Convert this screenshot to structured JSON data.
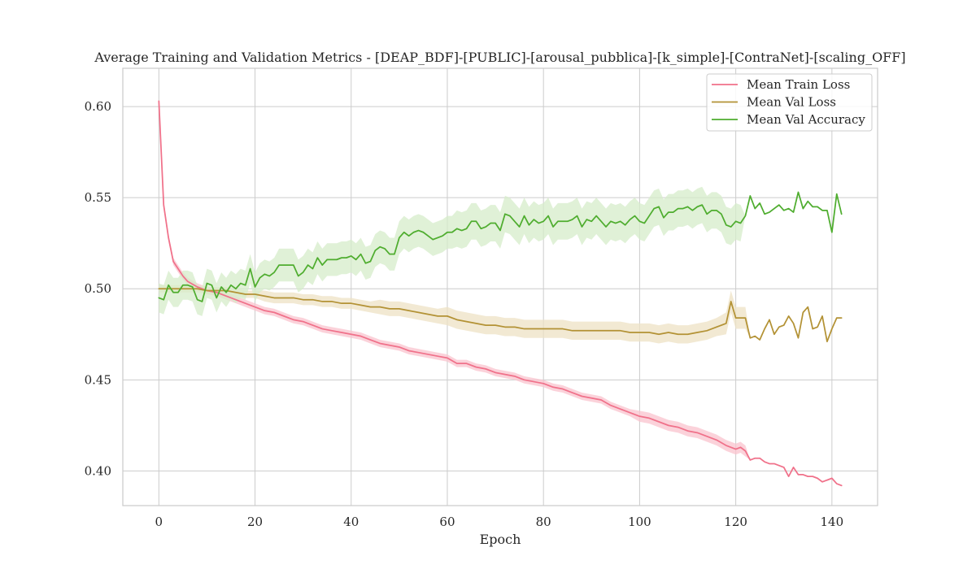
{
  "chart_data": {
    "type": "line",
    "title": "Average Training and Validation Metrics - [DEAP_BDF]-[PUBLIC]-[arousal_pubblica]-[k_simple]-[ContraNet]-[scaling_OFF]",
    "xlabel": "Epoch",
    "ylabel": "",
    "xlim": [
      -7.5,
      149.5
    ],
    "ylim": [
      0.381,
      0.621
    ],
    "xticks": [
      "0",
      "20",
      "40",
      "60",
      "80",
      "100",
      "120",
      "140"
    ],
    "yticks": [
      "0.40",
      "0.45",
      "0.50",
      "0.55",
      "0.60"
    ],
    "grid": true,
    "legend_position": "top-right",
    "series": [
      {
        "name": "Mean Train Loss",
        "color": "#f0718a",
        "band_color": "#f9c3ce",
        "x": [
          0,
          1,
          2,
          3,
          4,
          5,
          6,
          8,
          10,
          12,
          14,
          16,
          18,
          20,
          22,
          24,
          26,
          28,
          30,
          32,
          34,
          36,
          38,
          40,
          42,
          44,
          46,
          48,
          50,
          52,
          54,
          56,
          58,
          60,
          62,
          64,
          66,
          68,
          70,
          72,
          74,
          76,
          78,
          80,
          82,
          84,
          86,
          88,
          90,
          92,
          94,
          96,
          98,
          100,
          102,
          104,
          106,
          108,
          110,
          112,
          114,
          116,
          118,
          120,
          121,
          122,
          123,
          124,
          125,
          126,
          127,
          128,
          129,
          130,
          131,
          132,
          133,
          134,
          135,
          136,
          137,
          138,
          139,
          140,
          141,
          142
        ],
        "values": [
          0.603,
          0.546,
          0.528,
          0.515,
          0.511,
          0.507,
          0.504,
          0.501,
          0.499,
          0.498,
          0.496,
          0.494,
          0.492,
          0.49,
          0.488,
          0.487,
          0.485,
          0.483,
          0.482,
          0.48,
          0.478,
          0.477,
          0.476,
          0.475,
          0.474,
          0.472,
          0.47,
          0.469,
          0.468,
          0.466,
          0.465,
          0.464,
          0.463,
          0.462,
          0.459,
          0.459,
          0.457,
          0.456,
          0.454,
          0.453,
          0.452,
          0.45,
          0.449,
          0.448,
          0.446,
          0.445,
          0.443,
          0.441,
          0.44,
          0.439,
          0.436,
          0.434,
          0.432,
          0.43,
          0.429,
          0.427,
          0.425,
          0.424,
          0.422,
          0.421,
          0.419,
          0.417,
          0.414,
          0.412,
          0.413,
          0.411,
          0.406,
          0.407,
          0.407,
          0.405,
          0.404,
          0.404,
          0.403,
          0.402,
          0.397,
          0.402,
          0.398,
          0.398,
          0.397,
          0.397,
          0.396,
          0.394,
          0.395,
          0.396,
          0.393,
          0.392
        ],
        "band": [
          0.002,
          0.002,
          0.002,
          0.002,
          0.002,
          0.002,
          0.002,
          0.002,
          0.002,
          0.002,
          0.002,
          0.002,
          0.002,
          0.002,
          0.002,
          0.002,
          0.002,
          0.002,
          0.002,
          0.002,
          0.002,
          0.002,
          0.002,
          0.002,
          0.002,
          0.002,
          0.002,
          0.002,
          0.002,
          0.002,
          0.002,
          0.002,
          0.002,
          0.002,
          0.002,
          0.002,
          0.002,
          0.002,
          0.002,
          0.002,
          0.002,
          0.002,
          0.002,
          0.002,
          0.002,
          0.002,
          0.002,
          0.002,
          0.002,
          0.002,
          0.002,
          0.002,
          0.002,
          0.003,
          0.003,
          0.003,
          0.003,
          0.003,
          0.003,
          0.003,
          0.003,
          0.003,
          0.003,
          0.003,
          0.003,
          0.003,
          0,
          0,
          0,
          0,
          0,
          0,
          0,
          0,
          0,
          0,
          0,
          0,
          0,
          0,
          0,
          0,
          0,
          0,
          0,
          0
        ]
      },
      {
        "name": "Mean Val Loss",
        "color": "#b39235",
        "band_color": "#ede1c4",
        "x": [
          0,
          2,
          4,
          6,
          8,
          10,
          12,
          14,
          16,
          18,
          20,
          22,
          24,
          26,
          28,
          30,
          32,
          34,
          36,
          38,
          40,
          42,
          44,
          46,
          48,
          50,
          52,
          54,
          56,
          58,
          60,
          62,
          64,
          66,
          68,
          70,
          72,
          74,
          76,
          78,
          80,
          82,
          84,
          86,
          88,
          90,
          92,
          94,
          96,
          98,
          100,
          102,
          104,
          106,
          108,
          110,
          112,
          114,
          116,
          118,
          119,
          120,
          121,
          122,
          123,
          124,
          125,
          126,
          127,
          128,
          129,
          130,
          131,
          132,
          133,
          134,
          135,
          136,
          137,
          138,
          139,
          140,
          141,
          142
        ],
        "values": [
          0.5,
          0.5,
          0.5,
          0.5,
          0.5,
          0.499,
          0.499,
          0.499,
          0.498,
          0.497,
          0.497,
          0.496,
          0.495,
          0.495,
          0.495,
          0.494,
          0.494,
          0.493,
          0.493,
          0.492,
          0.492,
          0.491,
          0.49,
          0.49,
          0.489,
          0.489,
          0.488,
          0.487,
          0.486,
          0.485,
          0.485,
          0.483,
          0.482,
          0.481,
          0.48,
          0.48,
          0.479,
          0.479,
          0.478,
          0.478,
          0.478,
          0.478,
          0.478,
          0.477,
          0.477,
          0.477,
          0.477,
          0.477,
          0.477,
          0.476,
          0.476,
          0.476,
          0.475,
          0.476,
          0.475,
          0.475,
          0.476,
          0.477,
          0.479,
          0.481,
          0.493,
          0.484,
          0.484,
          0.484,
          0.473,
          0.474,
          0.472,
          0.478,
          0.483,
          0.475,
          0.479,
          0.48,
          0.485,
          0.481,
          0.473,
          0.487,
          0.49,
          0.478,
          0.479,
          0.485,
          0.471,
          0.478,
          0.484,
          0.484
        ],
        "band": [
          0.002,
          0.002,
          0.002,
          0.002,
          0.002,
          0.002,
          0.002,
          0.002,
          0.002,
          0.002,
          0.002,
          0.003,
          0.003,
          0.003,
          0.003,
          0.003,
          0.003,
          0.003,
          0.003,
          0.003,
          0.003,
          0.003,
          0.003,
          0.004,
          0.004,
          0.004,
          0.004,
          0.004,
          0.004,
          0.004,
          0.005,
          0.005,
          0.005,
          0.005,
          0.005,
          0.005,
          0.005,
          0.005,
          0.005,
          0.005,
          0.005,
          0.005,
          0.005,
          0.005,
          0.005,
          0.005,
          0.005,
          0.005,
          0.005,
          0.005,
          0.005,
          0.005,
          0.005,
          0.005,
          0.005,
          0.005,
          0.005,
          0.005,
          0.005,
          0.006,
          0.006,
          0.006,
          0.006,
          0.006,
          0,
          0,
          0,
          0,
          0,
          0,
          0,
          0,
          0,
          0,
          0,
          0,
          0,
          0,
          0,
          0,
          0,
          0,
          0,
          0
        ]
      },
      {
        "name": "Mean Val Accuracy",
        "color": "#4fad2f",
        "band_color": "#d5ecca",
        "x": [
          0,
          1,
          2,
          3,
          4,
          5,
          6,
          7,
          8,
          9,
          10,
          11,
          12,
          13,
          14,
          15,
          16,
          17,
          18,
          19,
          20,
          21,
          22,
          23,
          24,
          25,
          26,
          27,
          28,
          29,
          30,
          31,
          32,
          33,
          34,
          35,
          36,
          37,
          38,
          39,
          40,
          41,
          42,
          43,
          44,
          45,
          46,
          47,
          48,
          49,
          50,
          51,
          52,
          53,
          54,
          55,
          56,
          57,
          58,
          59,
          60,
          61,
          62,
          63,
          64,
          65,
          66,
          67,
          68,
          69,
          70,
          71,
          72,
          73,
          74,
          75,
          76,
          77,
          78,
          79,
          80,
          81,
          82,
          83,
          84,
          85,
          86,
          87,
          88,
          89,
          90,
          91,
          92,
          93,
          94,
          95,
          96,
          97,
          98,
          99,
          100,
          101,
          102,
          103,
          104,
          105,
          106,
          107,
          108,
          109,
          110,
          111,
          112,
          113,
          114,
          115,
          116,
          117,
          118,
          119,
          120,
          121,
          122,
          123,
          124,
          125,
          126,
          127,
          128,
          129,
          130,
          131,
          132,
          133,
          134,
          135,
          136,
          137,
          138,
          139,
          140,
          141,
          142
        ],
        "values": [
          0.495,
          0.494,
          0.502,
          0.498,
          0.498,
          0.502,
          0.502,
          0.501,
          0.494,
          0.493,
          0.503,
          0.502,
          0.495,
          0.501,
          0.498,
          0.502,
          0.5,
          0.503,
          0.502,
          0.511,
          0.501,
          0.506,
          0.508,
          0.507,
          0.509,
          0.513,
          0.513,
          0.513,
          0.513,
          0.507,
          0.509,
          0.513,
          0.511,
          0.517,
          0.513,
          0.516,
          0.516,
          0.516,
          0.517,
          0.517,
          0.518,
          0.516,
          0.519,
          0.514,
          0.515,
          0.521,
          0.523,
          0.522,
          0.519,
          0.519,
          0.528,
          0.531,
          0.529,
          0.531,
          0.532,
          0.531,
          0.529,
          0.527,
          0.528,
          0.529,
          0.531,
          0.531,
          0.533,
          0.532,
          0.533,
          0.537,
          0.537,
          0.533,
          0.534,
          0.536,
          0.536,
          0.532,
          0.541,
          0.54,
          0.537,
          0.534,
          0.54,
          0.535,
          0.538,
          0.536,
          0.537,
          0.54,
          0.534,
          0.537,
          0.537,
          0.537,
          0.538,
          0.54,
          0.534,
          0.538,
          0.537,
          0.54,
          0.537,
          0.534,
          0.537,
          0.536,
          0.537,
          0.535,
          0.538,
          0.54,
          0.537,
          0.536,
          0.54,
          0.544,
          0.545,
          0.539,
          0.542,
          0.542,
          0.544,
          0.544,
          0.545,
          0.543,
          0.545,
          0.546,
          0.541,
          0.543,
          0.543,
          0.541,
          0.535,
          0.534,
          0.537,
          0.536,
          0.54,
          0.551,
          0.544,
          0.547,
          0.541,
          0.542,
          0.544,
          0.546,
          0.543,
          0.544,
          0.542,
          0.553,
          0.544,
          0.548,
          0.545,
          0.545,
          0.543,
          0.543,
          0.531,
          0.552,
          0.541
        ],
        "band": [
          0.008,
          0.008,
          0.008,
          0.008,
          0.008,
          0.008,
          0.008,
          0.008,
          0.008,
          0.008,
          0.008,
          0.008,
          0.008,
          0.008,
          0.008,
          0.008,
          0.008,
          0.008,
          0.008,
          0.008,
          0.008,
          0.008,
          0.008,
          0.008,
          0.008,
          0.009,
          0.009,
          0.009,
          0.009,
          0.009,
          0.009,
          0.009,
          0.009,
          0.009,
          0.009,
          0.009,
          0.009,
          0.009,
          0.009,
          0.009,
          0.009,
          0.009,
          0.009,
          0.009,
          0.009,
          0.009,
          0.009,
          0.009,
          0.009,
          0.009,
          0.009,
          0.009,
          0.009,
          0.009,
          0.009,
          0.009,
          0.009,
          0.009,
          0.009,
          0.009,
          0.009,
          0.009,
          0.01,
          0.01,
          0.01,
          0.01,
          0.01,
          0.01,
          0.01,
          0.01,
          0.01,
          0.01,
          0.01,
          0.01,
          0.01,
          0.01,
          0.01,
          0.01,
          0.01,
          0.01,
          0.01,
          0.01,
          0.01,
          0.01,
          0.01,
          0.01,
          0.01,
          0.01,
          0.01,
          0.01,
          0.01,
          0.01,
          0.01,
          0.01,
          0.01,
          0.01,
          0.01,
          0.01,
          0.01,
          0.01,
          0.01,
          0.01,
          0.01,
          0.01,
          0.01,
          0.01,
          0.01,
          0.01,
          0.01,
          0.01,
          0.01,
          0.01,
          0.01,
          0.01,
          0.01,
          0.01,
          0.01,
          0.01,
          0.01,
          0.01,
          0.01,
          0.01,
          0,
          0,
          0,
          0,
          0,
          0,
          0,
          0,
          0,
          0,
          0,
          0,
          0,
          0,
          0,
          0,
          0,
          0,
          0,
          0,
          0
        ]
      }
    ]
  }
}
